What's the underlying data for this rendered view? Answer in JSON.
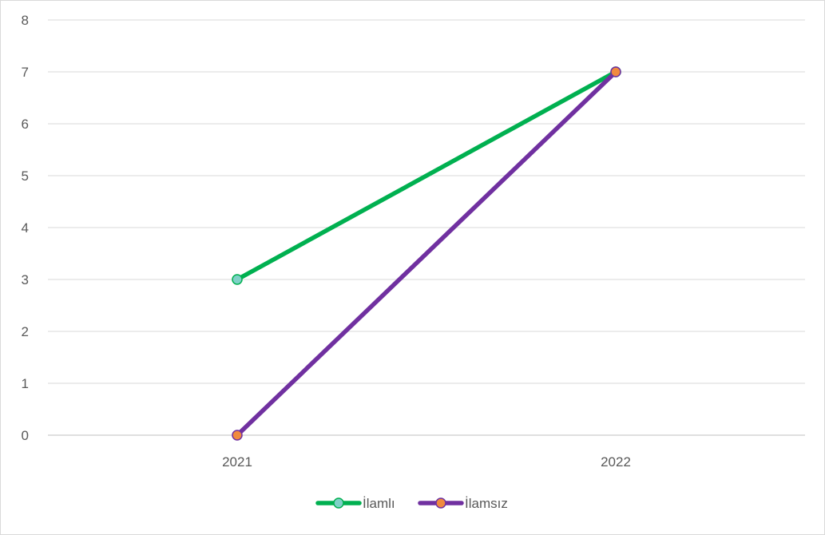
{
  "chart_data": {
    "type": "line",
    "title": "",
    "xlabel": "",
    "ylabel": "",
    "categories": [
      "2021",
      "2022"
    ],
    "ylim": [
      0,
      8
    ],
    "yticks": [
      "0",
      "1",
      "2",
      "3",
      "4",
      "5",
      "6",
      "7",
      "8"
    ],
    "grid": true,
    "legend_position": "bottom",
    "series": [
      {
        "name": "İlamlı",
        "values": [
          3,
          7
        ],
        "line_color": "#00b050",
        "marker_color": "#7fd1c7"
      },
      {
        "name": "İlamsız",
        "values": [
          0,
          7
        ],
        "line_color": "#7030a0",
        "marker_color": "#f08a3e"
      }
    ]
  }
}
